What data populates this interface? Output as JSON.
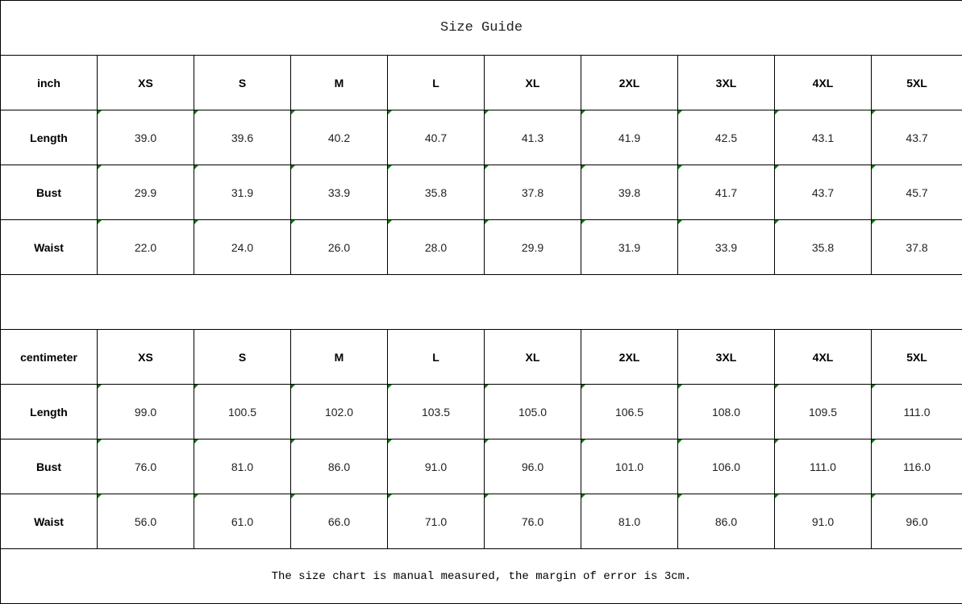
{
  "title": "Size Guide",
  "sizes": [
    "XS",
    "S",
    "M",
    "L",
    "XL",
    "2XL",
    "3XL",
    "4XL",
    "5XL"
  ],
  "inch": {
    "unit": "inch",
    "rows": [
      {
        "label": "Length",
        "values": [
          "39.0",
          "39.6",
          "40.2",
          "40.7",
          "41.3",
          "41.9",
          "42.5",
          "43.1",
          "43.7"
        ]
      },
      {
        "label": "Bust",
        "values": [
          "29.9",
          "31.9",
          "33.9",
          "35.8",
          "37.8",
          "39.8",
          "41.7",
          "43.7",
          "45.7"
        ]
      },
      {
        "label": "Waist",
        "values": [
          "22.0",
          "24.0",
          "26.0",
          "28.0",
          "29.9",
          "31.9",
          "33.9",
          "35.8",
          "37.8"
        ]
      }
    ]
  },
  "cm": {
    "unit": "centimeter",
    "rows": [
      {
        "label": "Length",
        "values": [
          "99.0",
          "100.5",
          "102.0",
          "103.5",
          "105.0",
          "106.5",
          "108.0",
          "109.5",
          "111.0"
        ]
      },
      {
        "label": "Bust",
        "values": [
          "76.0",
          "81.0",
          "86.0",
          "91.0",
          "96.0",
          "101.0",
          "106.0",
          "111.0",
          "116.0"
        ]
      },
      {
        "label": "Waist",
        "values": [
          "56.0",
          "61.0",
          "66.0",
          "71.0",
          "76.0",
          "81.0",
          "86.0",
          "91.0",
          "96.0"
        ]
      }
    ]
  },
  "note": "The size chart is manual measured, the margin of error is 3cm.",
  "colors": {
    "cell_marker": "#0a7d0a",
    "border": "#000000"
  }
}
